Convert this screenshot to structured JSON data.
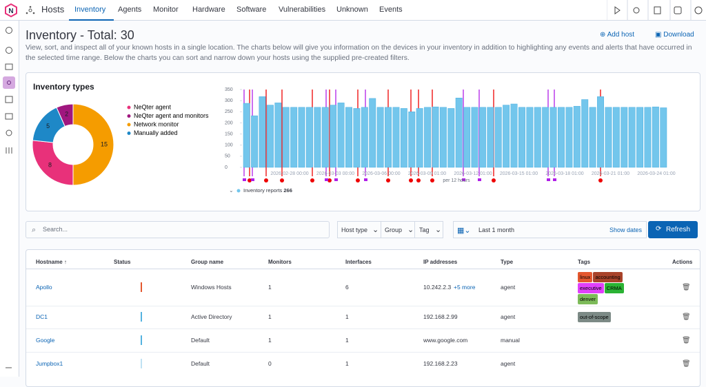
{
  "nav": {
    "section": "Hosts",
    "tabs": [
      "Inventory",
      "Agents",
      "Monitor",
      "Hardware",
      "Software",
      "Vulnerabilities",
      "Unknown",
      "Events"
    ],
    "active_tab": 0
  },
  "header": {
    "title": "Inventory - Total: 30",
    "add_host": "Add host",
    "download": "Download",
    "description": "View, sort, and inspect all of your known hosts in a single location. The charts below will give you information on the devices in your inventory in addition to highlighting any events and alerts that have occurred in the selected time range. Below the charts you can sort and narrow down your hosts using the supplied pre-created filters."
  },
  "chart_data": [
    {
      "type": "pie",
      "title": "Inventory types",
      "donut": true,
      "categories": [
        "NeQter agent",
        "NeQter agent and monitors",
        "Network monitor",
        "Manually added"
      ],
      "values": [
        8,
        2,
        15,
        5
      ],
      "colors": [
        "#e8317a",
        "#a0177f",
        "#f59c00",
        "#1e88c7"
      ]
    },
    {
      "type": "bar",
      "series_name": "Inventory reports",
      "legend_value": 266,
      "bucket_label": "per 12 hours",
      "color": "#73c6ec",
      "values": [
        288,
        232,
        318,
        280,
        290,
        270,
        270,
        270,
        270,
        270,
        270,
        280,
        290,
        270,
        265,
        270,
        310,
        270,
        270,
        270,
        265,
        250,
        265,
        270,
        272,
        270,
        265,
        312,
        270,
        270,
        270,
        270,
        270,
        280,
        285,
        270,
        270,
        270,
        270,
        270,
        270,
        270,
        275,
        305,
        270,
        318,
        270,
        270,
        270,
        270,
        270,
        270,
        272,
        268
      ],
      "ylim": [
        0,
        350
      ],
      "yticks": [
        0,
        50,
        100,
        150,
        200,
        250,
        300,
        350
      ],
      "x_labels": [
        "2026-02-28 00:00",
        "2026-03-03 00:00",
        "2026-03-06 00:00",
        "2026-03-09 01:00",
        "2026-03-12 01:00",
        "2026-03-15 01:00",
        "2026-03-18 01:00",
        "2026-03-21 01:00",
        "2026-03-24 01:00"
      ]
    }
  ],
  "filters": {
    "search": "Search...",
    "host_type": "Host type",
    "group": "Group",
    "tag": "Tag",
    "range": "Last 1 month",
    "show_dates": "Show dates",
    "refresh": "Refresh"
  },
  "table": {
    "columns": [
      "Hostname ↑",
      "Status",
      "Group name",
      "Monitors",
      "Interfaces",
      "IP addresses",
      "Type",
      "Tags",
      "Actions"
    ],
    "rows": [
      {
        "hostname": "Apollo",
        "group": "Windows Hosts",
        "monitors": 1,
        "interfaces": 6,
        "ip": "10.242.2.3",
        "ip_more": "+5 more",
        "type": "agent",
        "tags": [
          {
            "label": "linux",
            "color": "#e4572e"
          },
          {
            "label": "accounting",
            "color": "#a9432a"
          },
          {
            "label": "executive",
            "color": "#e040fb"
          },
          {
            "label": "CRMA",
            "color": "#2bb334"
          },
          {
            "label": "denver",
            "color": "#7dbb5a"
          }
        ]
      },
      {
        "hostname": "DC1",
        "group": "Active Directory",
        "monitors": 1,
        "interfaces": 1,
        "ip": "192.168.2.99",
        "type": "agent",
        "tags": [
          {
            "label": "out-of-scope",
            "color": "#7c8a86"
          }
        ]
      },
      {
        "hostname": "Google",
        "group": "Default",
        "monitors": 1,
        "interfaces": 1,
        "ip": "www.google.com",
        "type": "manual"
      },
      {
        "hostname": "Jumpbox1",
        "group": "Default",
        "monitors": 0,
        "interfaces": 1,
        "ip": "192.168.2.23",
        "type": "agent"
      }
    ]
  }
}
